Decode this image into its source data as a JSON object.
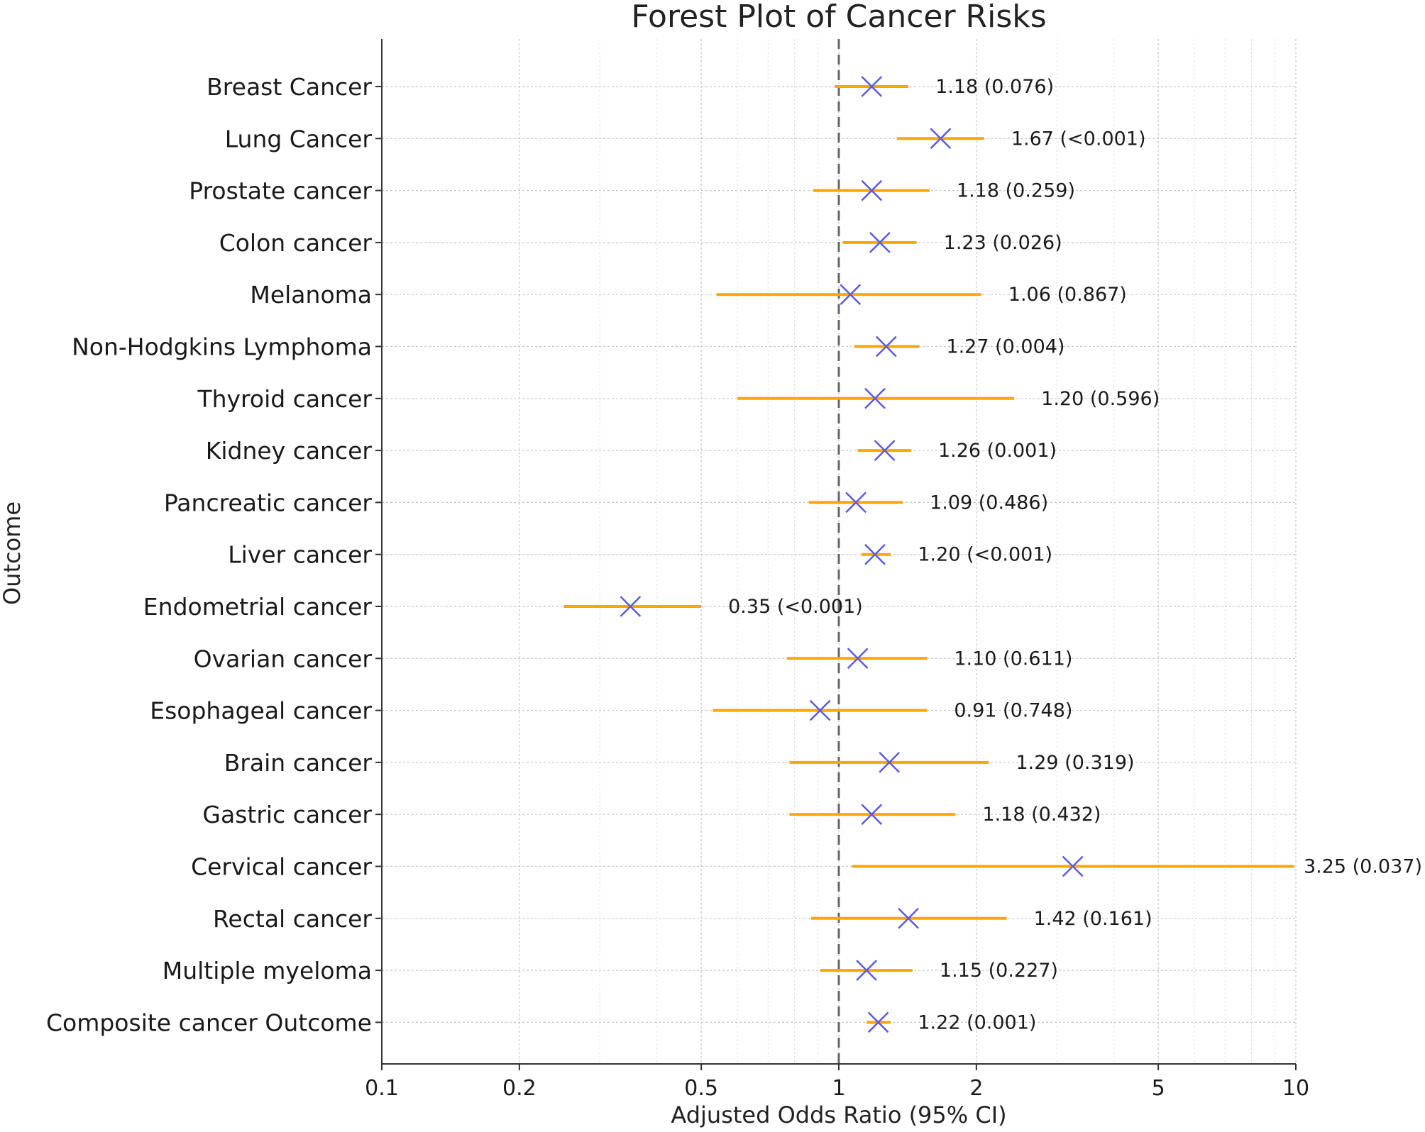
{
  "chart_data": {
    "type": "scatter",
    "title": "Forest Plot of Cancer Risks",
    "xlabel": "Adjusted Odds Ratio (95% CI)",
    "ylabel": "Outcome",
    "x_scale": "log",
    "xlim": [
      0.1,
      10
    ],
    "x_ticks": [
      "0.1",
      "0.2",
      "0.5",
      "1",
      "2",
      "5",
      "10"
    ],
    "reference_line": 1,
    "grid": true,
    "marker_color": "#5a5ae6",
    "ci_color": "#ffa500",
    "outcomes": [
      {
        "label": "Breast Cancer",
        "or": 1.18,
        "ci_low": 0.98,
        "ci_high": 1.42,
        "annotation": "1.18 (0.076)"
      },
      {
        "label": "Lung Cancer",
        "or": 1.67,
        "ci_low": 1.34,
        "ci_high": 2.08,
        "annotation": "1.67 (<0.001)"
      },
      {
        "label": "Prostate cancer",
        "or": 1.18,
        "ci_low": 0.88,
        "ci_high": 1.58,
        "annotation": "1.18 (0.259)"
      },
      {
        "label": "Colon cancer",
        "or": 1.23,
        "ci_low": 1.02,
        "ci_high": 1.48,
        "annotation": "1.23 (0.026)"
      },
      {
        "label": "Melanoma",
        "or": 1.06,
        "ci_low": 0.54,
        "ci_high": 2.05,
        "annotation": "1.06 (0.867)"
      },
      {
        "label": "Non-Hodgkins Lymphoma",
        "or": 1.27,
        "ci_low": 1.08,
        "ci_high": 1.5,
        "annotation": "1.27 (0.004)"
      },
      {
        "label": "Thyroid cancer",
        "or": 1.2,
        "ci_low": 0.6,
        "ci_high": 2.42,
        "annotation": "1.20 (0.596)"
      },
      {
        "label": "Kidney cancer",
        "or": 1.26,
        "ci_low": 1.1,
        "ci_high": 1.44,
        "annotation": "1.26 (0.001)"
      },
      {
        "label": "Pancreatic cancer",
        "or": 1.09,
        "ci_low": 0.86,
        "ci_high": 1.38,
        "annotation": "1.09 (0.486)"
      },
      {
        "label": "Liver cancer",
        "or": 1.2,
        "ci_low": 1.12,
        "ci_high": 1.3,
        "annotation": "1.20 (<0.001)"
      },
      {
        "label": "Endometrial cancer",
        "or": 0.35,
        "ci_low": 0.25,
        "ci_high": 0.5,
        "annotation": "0.35 (<0.001)"
      },
      {
        "label": "Ovarian cancer",
        "or": 1.1,
        "ci_low": 0.77,
        "ci_high": 1.56,
        "annotation": "1.10 (0.611)"
      },
      {
        "label": "Esophageal cancer",
        "or": 0.91,
        "ci_low": 0.53,
        "ci_high": 1.56,
        "annotation": "0.91 (0.748)"
      },
      {
        "label": "Brain cancer",
        "or": 1.29,
        "ci_low": 0.78,
        "ci_high": 2.13,
        "annotation": "1.29 (0.319)"
      },
      {
        "label": "Gastric cancer",
        "or": 1.18,
        "ci_low": 0.78,
        "ci_high": 1.8,
        "annotation": "1.18 (0.432)"
      },
      {
        "label": "Cervical cancer",
        "or": 3.25,
        "ci_low": 1.07,
        "ci_high": 9.9,
        "annotation": "3.25 (0.037)"
      },
      {
        "label": "Rectal cancer",
        "or": 1.42,
        "ci_low": 0.87,
        "ci_high": 2.33,
        "annotation": "1.42 (0.161)"
      },
      {
        "label": "Multiple myeloma",
        "or": 1.15,
        "ci_low": 0.91,
        "ci_high": 1.45,
        "annotation": "1.15 (0.227)"
      },
      {
        "label": "Composite cancer Outcome",
        "or": 1.22,
        "ci_low": 1.15,
        "ci_high": 1.3,
        "annotation": "1.22 (0.001)"
      }
    ]
  }
}
